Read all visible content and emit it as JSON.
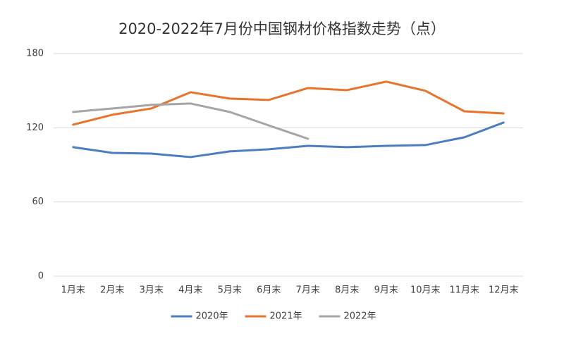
{
  "chart_data": {
    "type": "line",
    "title": "2020-2022年7月份中国钢材价格指数走势（点）",
    "categories": [
      "1月末",
      "2月末",
      "3月末",
      "4月末",
      "5月末",
      "6月末",
      "7月末",
      "8月末",
      "9月末",
      "10月末",
      "11月末",
      "12月末"
    ],
    "series": [
      {
        "name": "2020年",
        "color": "#4a7ec0",
        "values": [
          104.3,
          99.7,
          99.1,
          96.3,
          100.9,
          102.6,
          105.4,
          104.3,
          105.4,
          106,
          112.3,
          124.2
        ]
      },
      {
        "name": "2021年",
        "color": "#e9732b",
        "values": [
          122.5,
          130.5,
          135.6,
          148.7,
          143.6,
          142.5,
          152.1,
          150.4,
          157.3,
          149.9,
          133.3,
          131.6
        ]
      },
      {
        "name": "2022年",
        "color": "#a5a5a5",
        "values": [
          132.8,
          135.6,
          138.5,
          139.6,
          132.8,
          121.9,
          111.1,
          null,
          null,
          null,
          null,
          null
        ]
      }
    ],
    "ylim": [
      0,
      180
    ],
    "yticks": [
      0,
      60,
      120,
      180
    ],
    "grid": true,
    "legend": "bottom"
  }
}
